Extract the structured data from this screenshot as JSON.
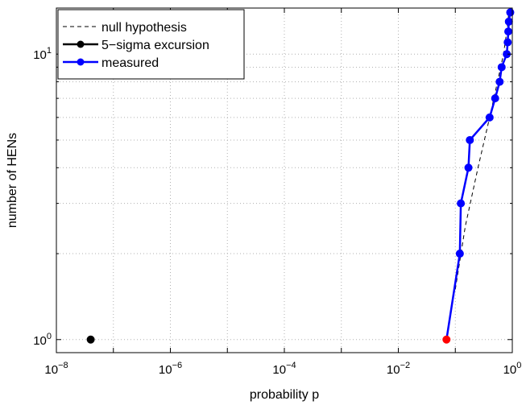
{
  "chart_data": {
    "type": "line",
    "xlabel": "probability p",
    "ylabel": "number of HENs",
    "x_scale": "log",
    "y_scale": "log",
    "xlim": [
      1e-08,
      1
    ],
    "ylim": [
      0.9,
      14.5
    ],
    "grid": true,
    "legend_position": "top-left",
    "x_ticks": [
      {
        "value": 1e-08,
        "base": "10",
        "exp": "−8"
      },
      {
        "value": 1e-06,
        "base": "10",
        "exp": "−6"
      },
      {
        "value": 0.0001,
        "base": "10",
        "exp": "−4"
      },
      {
        "value": 0.01,
        "base": "10",
        "exp": "−2"
      },
      {
        "value": 1,
        "base": "10",
        "exp": "0"
      }
    ],
    "y_ticks": [
      {
        "value": 1,
        "base": "10",
        "exp": "0"
      },
      {
        "value": 10,
        "base": "10",
        "exp": "1"
      }
    ],
    "series": [
      {
        "name": "null hypothesis",
        "style": "dashed",
        "color": "#000000",
        "points": [
          [
            0.1,
            1.5
          ],
          [
            0.15,
            2.5
          ],
          [
            0.25,
            4
          ],
          [
            0.4,
            6
          ],
          [
            0.55,
            8
          ],
          [
            0.7,
            10
          ],
          [
            0.8,
            12
          ],
          [
            0.87,
            14
          ]
        ]
      },
      {
        "name": "5−sigma excursion",
        "style": "marker",
        "color": "#000000",
        "points": [
          [
            4e-08,
            1
          ]
        ]
      },
      {
        "name": "measured",
        "style": "line-marker",
        "color": "#0000ff",
        "points": [
          [
            0.07,
            1
          ],
          [
            0.12,
            2
          ],
          [
            0.125,
            3
          ],
          [
            0.17,
            4
          ],
          [
            0.18,
            5
          ],
          [
            0.4,
            6
          ],
          [
            0.5,
            7
          ],
          [
            0.6,
            8
          ],
          [
            0.65,
            9
          ],
          [
            0.8,
            10
          ],
          [
            0.83,
            11
          ],
          [
            0.85,
            12
          ],
          [
            0.87,
            13
          ],
          [
            0.92,
            14
          ]
        ],
        "highlight": {
          "index": 0,
          "color": "#ff0000"
        }
      }
    ]
  }
}
